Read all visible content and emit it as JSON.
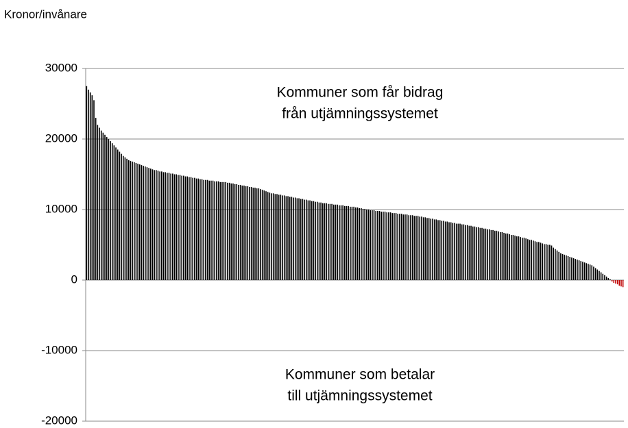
{
  "chart_data": {
    "type": "bar",
    "y_label": "Kronor/invånare",
    "annotations": [
      [
        "Kommuner som får bidrag",
        "från utjämningssystemet"
      ],
      [
        "Kommuner som betalar",
        "till utjämningssystemet"
      ]
    ],
    "ylim": [
      -20000,
      30000
    ],
    "yticks": [
      -20000,
      -10000,
      0,
      10000,
      20000,
      30000
    ],
    "grid": true,
    "color": "#000000",
    "negative_color": "#c00000",
    "values": [
      27500,
      27000,
      26600,
      26200,
      25500,
      23000,
      22000,
      21600,
      21200,
      20900,
      20600,
      20300,
      20000,
      19700,
      19400,
      19100,
      18800,
      18500,
      18200,
      17900,
      17600,
      17400,
      17200,
      17000,
      16900,
      16800,
      16700,
      16600,
      16500,
      16400,
      16300,
      16200,
      16100,
      16000,
      15900,
      15800,
      15700,
      15600,
      15600,
      15500,
      15400,
      15400,
      15300,
      15300,
      15200,
      15200,
      15100,
      15100,
      15000,
      15000,
      14900,
      14900,
      14800,
      14800,
      14700,
      14700,
      14600,
      14600,
      14500,
      14500,
      14400,
      14400,
      14300,
      14300,
      14200,
      14200,
      14200,
      14100,
      14100,
      14100,
      14000,
      14000,
      14000,
      13900,
      13900,
      13900,
      13900,
      13800,
      13800,
      13700,
      13700,
      13600,
      13600,
      13500,
      13500,
      13400,
      13400,
      13300,
      13300,
      13200,
      13200,
      13100,
      13100,
      13000,
      13000,
      12900,
      12800,
      12700,
      12600,
      12500,
      12400,
      12300,
      12300,
      12200,
      12200,
      12100,
      12100,
      12000,
      12000,
      11900,
      11900,
      11800,
      11800,
      11700,
      11700,
      11600,
      11600,
      11500,
      11500,
      11400,
      11400,
      11300,
      11300,
      11200,
      11200,
      11100,
      11100,
      11000,
      11000,
      10900,
      10900,
      10900,
      10800,
      10800,
      10800,
      10700,
      10700,
      10700,
      10600,
      10600,
      10600,
      10500,
      10500,
      10500,
      10400,
      10400,
      10400,
      10300,
      10300,
      10200,
      10200,
      10100,
      10100,
      10000,
      10000,
      9900,
      9900,
      9900,
      9800,
      9800,
      9800,
      9700,
      9700,
      9700,
      9600,
      9600,
      9600,
      9500,
      9500,
      9500,
      9400,
      9400,
      9400,
      9300,
      9300,
      9300,
      9200,
      9200,
      9200,
      9100,
      9100,
      9100,
      9000,
      9000,
      8900,
      8900,
      8800,
      8800,
      8700,
      8700,
      8600,
      8600,
      8500,
      8500,
      8400,
      8400,
      8300,
      8300,
      8200,
      8200,
      8100,
      8100,
      8000,
      8000,
      8000,
      7900,
      7900,
      7800,
      7800,
      7700,
      7700,
      7600,
      7600,
      7500,
      7500,
      7400,
      7400,
      7300,
      7300,
      7200,
      7200,
      7100,
      7100,
      7000,
      7000,
      6900,
      6800,
      6800,
      6700,
      6600,
      6600,
      6500,
      6400,
      6400,
      6300,
      6200,
      6200,
      6100,
      6000,
      6000,
      5900,
      5800,
      5700,
      5700,
      5600,
      5500,
      5400,
      5400,
      5300,
      5200,
      5100,
      5100,
      5000,
      5000,
      4900,
      4600,
      4400,
      4200,
      4000,
      3800,
      3700,
      3600,
      3500,
      3400,
      3300,
      3200,
      3100,
      3000,
      2900,
      2800,
      2700,
      2600,
      2500,
      2400,
      2300,
      2200,
      2100,
      1900,
      1700,
      1500,
      1300,
      1100,
      900,
      700,
      500,
      300,
      100,
      -200,
      -400,
      -500,
      -600,
      -800,
      -900,
      -1000
    ]
  }
}
